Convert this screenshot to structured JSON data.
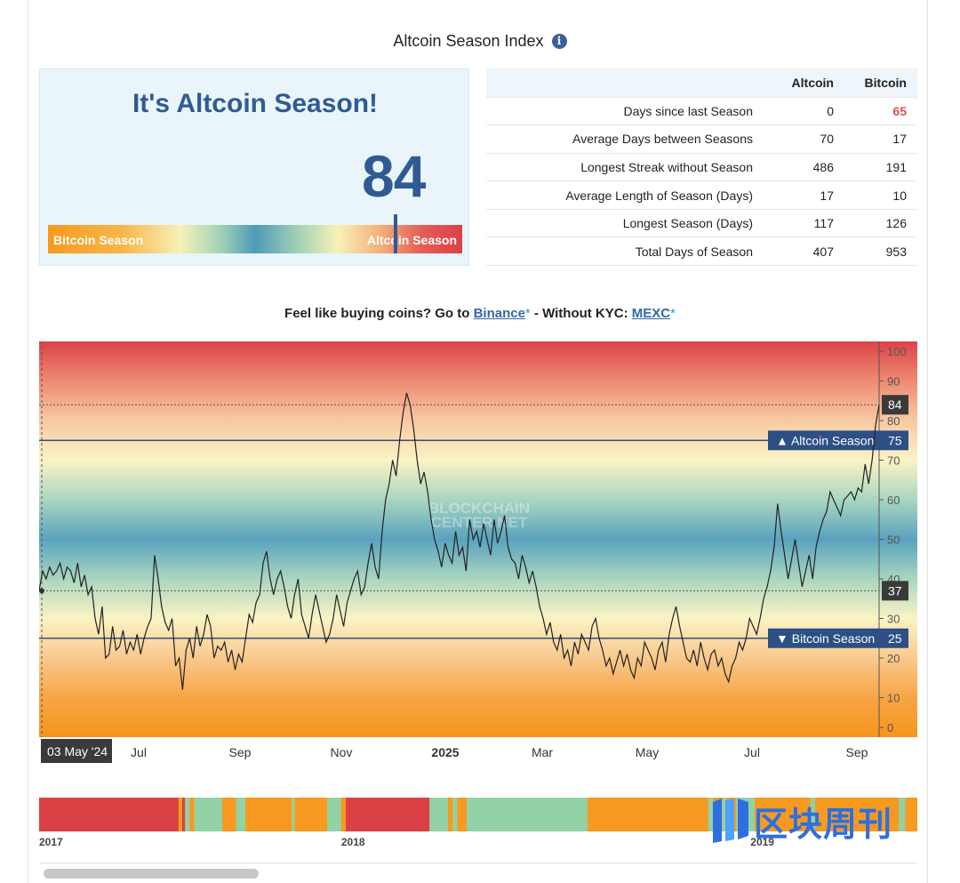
{
  "header": {
    "title": "Altcoin Season Index",
    "info_icon": "info-icon"
  },
  "index_panel": {
    "headline": "It's Altcoin Season!",
    "value": "84",
    "value_num": 84,
    "gauge_left_label": "Bitcoin Season",
    "gauge_right_label": "Altcoin Season"
  },
  "stats": {
    "columns": [
      "",
      "Altcoin",
      "Bitcoin"
    ],
    "rows": [
      {
        "label": "Days since last Season",
        "altcoin": "0",
        "bitcoin": "65",
        "bitcoin_highlight": true
      },
      {
        "label": "Average Days between Seasons",
        "altcoin": "70",
        "bitcoin": "17"
      },
      {
        "label": "Longest Streak without Season",
        "altcoin": "486",
        "bitcoin": "191"
      },
      {
        "label": "Average Length of Season (Days)",
        "altcoin": "17",
        "bitcoin": "10"
      },
      {
        "label": "Longest Season (Days)",
        "altcoin": "117",
        "bitcoin": "126"
      },
      {
        "label": "Total Days of Season",
        "altcoin": "407",
        "bitcoin": "953"
      }
    ],
    "highlight_color": "#d9534f"
  },
  "promo": {
    "prefix": "Feel like buying coins? Go to ",
    "link1": "Binance",
    "star": "*",
    "middle": " - Without KYC: ",
    "link2": "MEXC"
  },
  "chart_data": {
    "type": "line",
    "title": "",
    "watermark": "BLOCKCHAIN CENTER.NET",
    "start_label": "03 May '24",
    "x_ticks": [
      "Jul",
      "Sep",
      "Nov",
      "2025",
      "Mar",
      "May",
      "Jul",
      "Sep"
    ],
    "y_ticks": [
      0,
      10,
      20,
      30,
      40,
      50,
      60,
      70,
      80,
      90,
      100
    ],
    "ylim": [
      0,
      100
    ],
    "thresholds": [
      {
        "label": "▲ Altcoin Season",
        "value": 75
      },
      {
        "label": "▼ Bitcoin Season",
        "value": 25
      }
    ],
    "markers": [
      {
        "label": "84",
        "value": 84
      },
      {
        "label": "37",
        "value": 37
      }
    ],
    "series": [
      {
        "values": [
          37,
          42,
          40,
          43,
          41,
          42,
          44,
          40,
          43,
          42,
          39,
          44,
          38,
          41,
          36,
          38,
          30,
          26,
          33,
          20,
          21,
          28,
          22,
          23,
          27,
          21,
          24,
          22,
          26,
          21,
          25,
          28,
          30,
          46,
          40,
          33,
          29,
          27,
          30,
          18,
          20,
          12,
          22,
          25,
          20,
          28,
          23,
          26,
          31,
          28,
          20,
          23,
          22,
          24,
          19,
          22,
          17,
          21,
          19,
          25,
          31,
          29,
          34,
          36,
          44,
          47,
          40,
          36,
          40,
          42,
          38,
          33,
          30,
          36,
          40,
          31,
          28,
          25,
          31,
          36,
          32,
          28,
          24,
          26,
          30,
          36,
          32,
          28,
          34,
          37,
          40,
          42,
          36,
          38,
          44,
          49,
          43,
          40,
          52,
          60,
          64,
          70,
          66,
          75,
          82,
          87,
          84,
          78,
          70,
          64,
          67,
          62,
          55,
          50,
          47,
          43,
          49,
          46,
          44,
          52,
          46,
          48,
          42,
          55,
          50,
          52,
          48,
          54,
          50,
          46,
          55,
          49,
          52,
          56,
          48,
          45,
          44,
          40,
          46,
          43,
          39,
          42,
          38,
          33,
          30,
          26,
          29,
          24,
          22,
          26,
          20,
          22,
          18,
          24,
          21,
          26,
          24,
          22,
          28,
          30,
          25,
          22,
          18,
          20,
          16,
          19,
          22,
          18,
          21,
          17,
          15,
          20,
          18,
          24,
          22,
          20,
          17,
          22,
          24,
          19,
          26,
          30,
          33,
          28,
          24,
          20,
          19,
          22,
          18,
          24,
          20,
          17,
          21,
          22,
          18,
          20,
          16,
          14,
          18,
          20,
          24,
          22,
          25,
          30,
          28,
          26,
          30,
          35,
          38,
          42,
          48,
          59,
          52,
          46,
          40,
          45,
          50,
          44,
          38,
          42,
          46,
          40,
          48,
          52,
          55,
          57,
          62,
          60,
          58,
          56,
          60,
          61,
          62,
          60,
          63,
          62,
          69,
          64,
          70,
          79,
          84
        ]
      }
    ]
  },
  "timeline": {
    "labels": [
      {
        "text": "2017",
        "pos": 0
      },
      {
        "text": "2018",
        "pos": 0.344
      },
      {
        "text": "2019",
        "pos": 0.81
      }
    ],
    "segments": [
      [
        "#db4045",
        0.15
      ],
      [
        "#f79a1f",
        0.004
      ],
      [
        "#db4045",
        0.003
      ],
      [
        "#93d2a6",
        0.005
      ],
      [
        "#f79a1f",
        0.005
      ],
      [
        "#93d2a6",
        0.03
      ],
      [
        "#f79a1f",
        0.015
      ],
      [
        "#93d2a6",
        0.01
      ],
      [
        "#f79a1f",
        0.05
      ],
      [
        "#93d2a6",
        0.003
      ],
      [
        "#f79a1f",
        0.035
      ],
      [
        "#93d2a6",
        0.015
      ],
      [
        "#f79a1f",
        0.005
      ],
      [
        "#db4045",
        0.09
      ],
      [
        "#93d2a6",
        0.02
      ],
      [
        "#f79a1f",
        0.005
      ],
      [
        "#93d2a6",
        0.005
      ],
      [
        "#f79a1f",
        0.01
      ],
      [
        "#93d2a6",
        0.13
      ],
      [
        "#f79a1f",
        0.13
      ],
      [
        "#93d2a6",
        0.005
      ],
      [
        "#f79a1f",
        0.01
      ],
      [
        "#93d2a6",
        0.005
      ],
      [
        "#f79a1f",
        0.01
      ],
      [
        "#93d2a6",
        0.02
      ],
      [
        "#f79a1f",
        0.06
      ],
      [
        "#93d2a6",
        0.005
      ],
      [
        "#f79a1f",
        0.09
      ],
      [
        "#93d2a6",
        0.007
      ],
      [
        "#f79a1f",
        0.013
      ]
    ]
  },
  "brand_watermark": {
    "text": "区块周刊",
    "icon": "brand-logo-icon"
  }
}
